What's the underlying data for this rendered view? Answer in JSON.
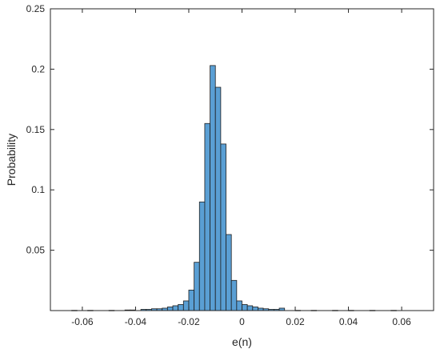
{
  "chart_data": {
    "type": "bar",
    "title": "",
    "xlabel": "e(n)",
    "ylabel": "Probability",
    "xlim": [
      -0.072,
      0.072
    ],
    "ylim": [
      0,
      0.25
    ],
    "xticks": [
      -0.06,
      -0.04,
      -0.02,
      0,
      0.02,
      0.04,
      0.06
    ],
    "xtick_labels": [
      "-0.06",
      "-0.04",
      "-0.02",
      "0",
      "0.02",
      "0.04",
      "0.06"
    ],
    "yticks": [
      0.05,
      0.1,
      0.15,
      0.2,
      0.25
    ],
    "ytick_labels": [
      "0.05",
      "0.1",
      "0.15",
      "0.2",
      "0.25"
    ],
    "bin_width": 0.002,
    "bar_color": "#5a9fd4",
    "bins": [
      {
        "x": -0.063,
        "y": 0.0002
      },
      {
        "x": -0.057,
        "y": 0.0002
      },
      {
        "x": -0.049,
        "y": 0.0002
      },
      {
        "x": -0.043,
        "y": 0.0005
      },
      {
        "x": -0.041,
        "y": 0.0005
      },
      {
        "x": -0.037,
        "y": 0.001
      },
      {
        "x": -0.035,
        "y": 0.001
      },
      {
        "x": -0.033,
        "y": 0.0015
      },
      {
        "x": -0.031,
        "y": 0.0015
      },
      {
        "x": -0.029,
        "y": 0.002
      },
      {
        "x": -0.027,
        "y": 0.003
      },
      {
        "x": -0.025,
        "y": 0.004
      },
      {
        "x": -0.023,
        "y": 0.005
      },
      {
        "x": -0.021,
        "y": 0.008
      },
      {
        "x": -0.019,
        "y": 0.017
      },
      {
        "x": -0.017,
        "y": 0.04
      },
      {
        "x": -0.015,
        "y": 0.09
      },
      {
        "x": -0.013,
        "y": 0.155
      },
      {
        "x": -0.011,
        "y": 0.203
      },
      {
        "x": -0.009,
        "y": 0.185
      },
      {
        "x": -0.007,
        "y": 0.138
      },
      {
        "x": -0.005,
        "y": 0.063
      },
      {
        "x": -0.003,
        "y": 0.025
      },
      {
        "x": -0.001,
        "y": 0.008
      },
      {
        "x": 0.001,
        "y": 0.005
      },
      {
        "x": 0.003,
        "y": 0.004
      },
      {
        "x": 0.005,
        "y": 0.003
      },
      {
        "x": 0.007,
        "y": 0.002
      },
      {
        "x": 0.009,
        "y": 0.0015
      },
      {
        "x": 0.011,
        "y": 0.001
      },
      {
        "x": 0.013,
        "y": 0.001
      },
      {
        "x": 0.015,
        "y": 0.002
      },
      {
        "x": 0.021,
        "y": 0.0002
      },
      {
        "x": 0.027,
        "y": 0.0002
      },
      {
        "x": 0.035,
        "y": 0.0002
      },
      {
        "x": 0.041,
        "y": 0.0002
      },
      {
        "x": 0.049,
        "y": 0.0002
      },
      {
        "x": 0.057,
        "y": 0.0002
      }
    ]
  }
}
